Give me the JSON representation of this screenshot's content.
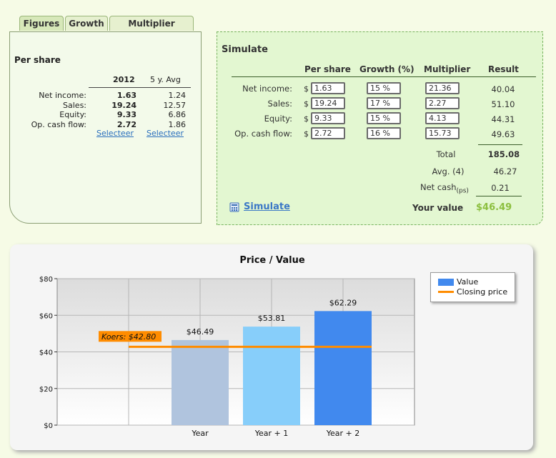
{
  "tabs": [
    "Figures",
    "Growth",
    "Multiplier"
  ],
  "per_share": {
    "title": "Per share",
    "col_year": "2012",
    "col_avg": "5 y. Avg",
    "rows": [
      {
        "label": "Net income:",
        "year": "1.63",
        "avg": "1.24"
      },
      {
        "label": "Sales:",
        "year": "19.24",
        "avg": "12.57"
      },
      {
        "label": "Equity:",
        "year": "9.33",
        "avg": "6.86"
      },
      {
        "label": "Op. cash flow:",
        "year": "2.72",
        "avg": "1.86"
      }
    ],
    "select_year": "Selecteer",
    "select_avg": "Selecteer"
  },
  "simulate": {
    "title": "Simulate",
    "headers": {
      "per_share": "Per share",
      "growth": "Growth (%)",
      "multiplier": "Multiplier",
      "result": "Result"
    },
    "currency": "$",
    "rows": [
      {
        "label": "Net income:",
        "per_share": "1.63",
        "growth": "15 %",
        "multiplier": "21.36",
        "result": "40.04"
      },
      {
        "label": "Sales:",
        "per_share": "19.24",
        "growth": "17 %",
        "multiplier": "2.27",
        "result": "51.10"
      },
      {
        "label": "Equity:",
        "per_share": "9.33",
        "growth": "15 %",
        "multiplier": "4.13",
        "result": "44.31"
      },
      {
        "label": "Op. cash flow:",
        "per_share": "2.72",
        "growth": "16 %",
        "multiplier": "15.73",
        "result": "49.63"
      }
    ],
    "total_label": "Total",
    "total_value": "185.08",
    "avg_label": "Avg. (4)",
    "avg_value": "46.27",
    "net_cash_label": "Net cash",
    "net_cash_sub": "(ps)",
    "net_cash_value": "0.21",
    "simulate_link": "Simulate",
    "your_value_label": "Your value",
    "your_value": "$46.49",
    "accent_color": "#8cbf3f"
  },
  "chart_data": {
    "type": "bar",
    "title": "Price / Value",
    "categories": [
      "Year",
      "Year + 1",
      "Year + 2"
    ],
    "values": [
      46.49,
      53.81,
      62.29
    ],
    "value_labels": [
      "$46.49",
      "$53.81",
      "$62.29"
    ],
    "bar_colors": [
      "#b0c4de",
      "#87cefa",
      "#4189ee"
    ],
    "yticks": [
      "$0",
      "$20",
      "$40",
      "$60",
      "$80"
    ],
    "ylim": [
      0,
      80
    ],
    "closing_price": 42.8,
    "closing_label": "Koers: $42.80",
    "legend": [
      {
        "name": "Value",
        "color": "#4189ee"
      },
      {
        "name": "Closing price",
        "color": "#ff8c00"
      }
    ],
    "grid": true,
    "legend_position": "right"
  }
}
